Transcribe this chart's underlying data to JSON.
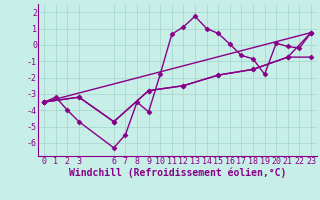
{
  "background_color": "#c8eee8",
  "grid_color": "#aad8d0",
  "line_color": "#880088",
  "marker": "D",
  "markersize": 2.5,
  "linewidth": 1.0,
  "xlabel": "Windchill (Refroidissement éolien,°C)",
  "xlabel_fontsize": 7,
  "tick_fontsize": 6,
  "xlim": [
    -0.5,
    23.5
  ],
  "ylim": [
    -6.8,
    2.5
  ],
  "yticks": [
    2,
    1,
    0,
    -1,
    -2,
    -3,
    -4,
    -5,
    -6
  ],
  "xticks": [
    0,
    1,
    2,
    3,
    6,
    7,
    8,
    9,
    10,
    11,
    12,
    13,
    14,
    15,
    16,
    17,
    18,
    19,
    20,
    21,
    22,
    23
  ],
  "series": [
    {
      "x": [
        0,
        1,
        2,
        3,
        6,
        7,
        8,
        9,
        10,
        11,
        12,
        13,
        14,
        15,
        16,
        17,
        18,
        19,
        20,
        21,
        22,
        23
      ],
      "y": [
        -3.5,
        -3.2,
        -4.0,
        -4.7,
        -6.3,
        -5.5,
        -3.5,
        -4.1,
        -1.8,
        0.65,
        1.1,
        1.75,
        1.0,
        0.7,
        0.05,
        -0.65,
        -0.85,
        -1.8,
        0.1,
        -0.1,
        -0.2,
        0.75
      ]
    },
    {
      "x": [
        0,
        23
      ],
      "y": [
        -3.5,
        0.75
      ]
    },
    {
      "x": [
        0,
        3,
        6,
        9,
        12,
        15,
        18,
        21,
        23
      ],
      "y": [
        -3.5,
        -3.2,
        -4.7,
        -2.8,
        -2.5,
        -1.85,
        -1.5,
        -0.75,
        -0.75
      ]
    },
    {
      "x": [
        0,
        3,
        6,
        9,
        12,
        15,
        18,
        21,
        23
      ],
      "y": [
        -3.5,
        -3.2,
        -4.7,
        -2.8,
        -2.5,
        -1.85,
        -1.5,
        -0.75,
        0.75
      ]
    }
  ]
}
